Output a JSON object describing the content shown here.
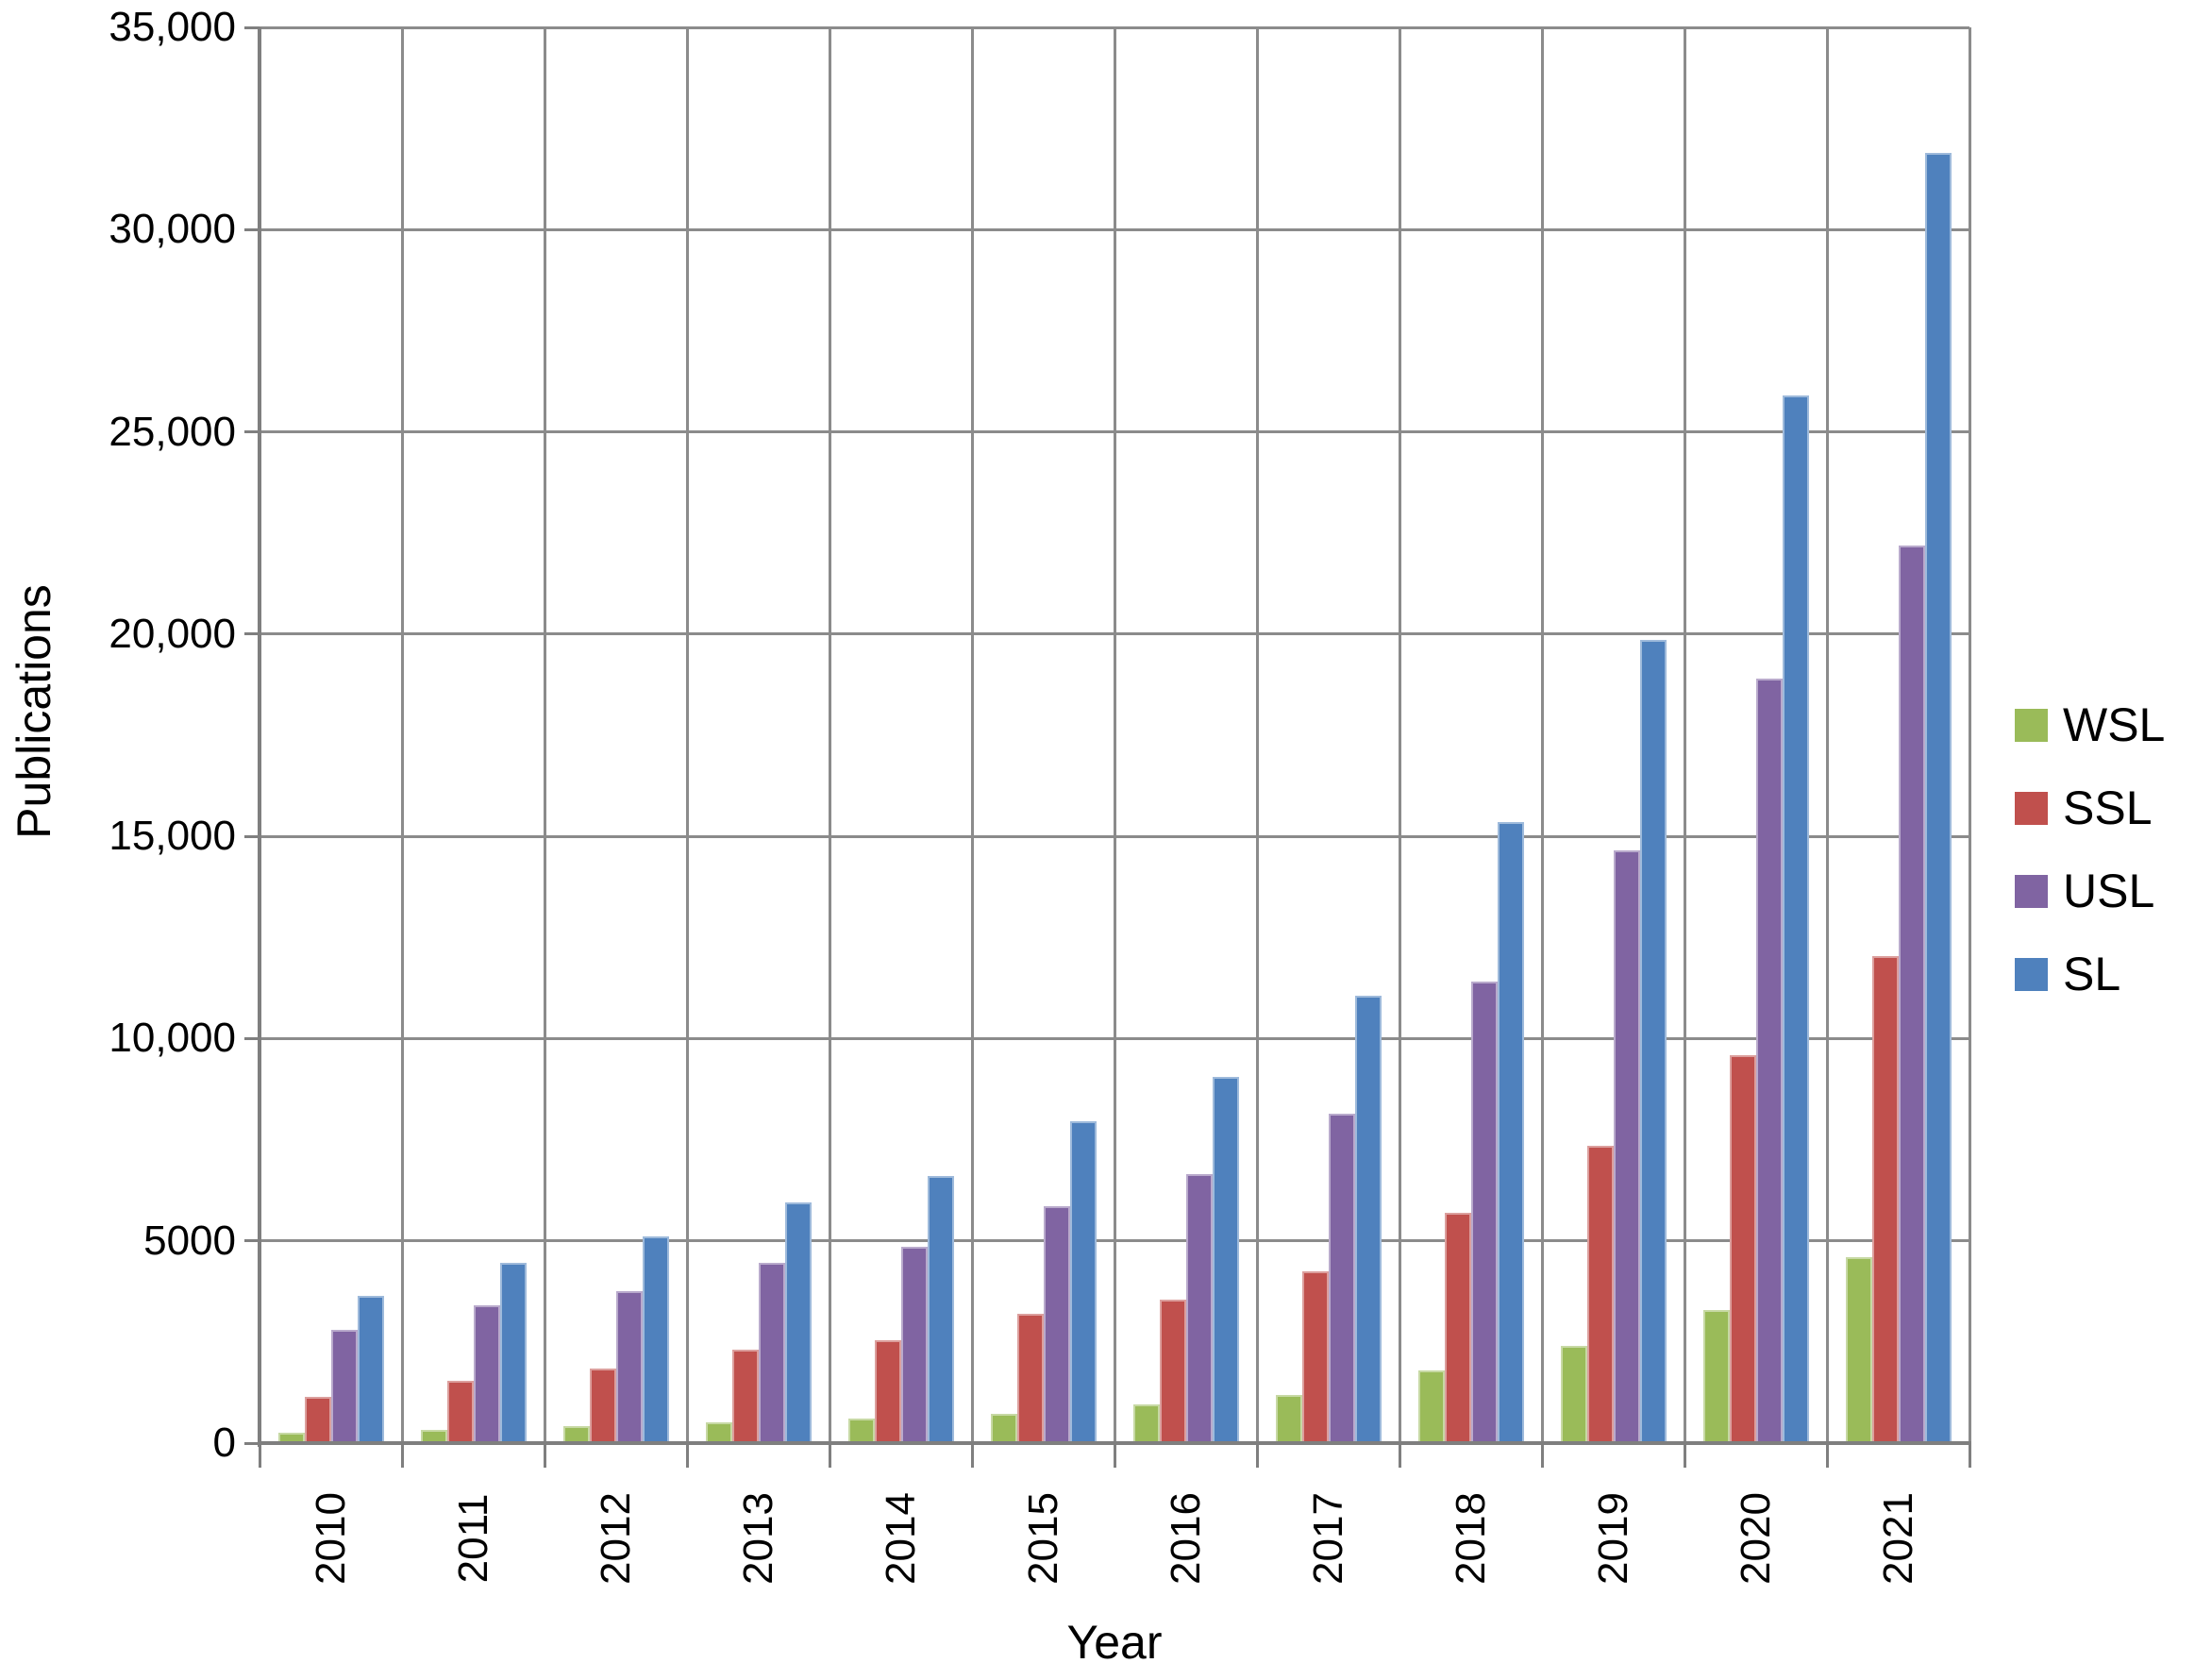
{
  "chart_data": {
    "type": "bar",
    "title": "",
    "xlabel": "Year",
    "ylabel": "Publications",
    "categories": [
      "2010",
      "2011",
      "2012",
      "2013",
      "2014",
      "2015",
      "2016",
      "2017",
      "2018",
      "2019",
      "2020",
      "2021"
    ],
    "series": [
      {
        "name": "WSL",
        "color": "#9ABB59",
        "values": [
          250,
          330,
          430,
          510,
          600,
          730,
          950,
          1200,
          1800,
          2400,
          3300,
          4600
        ]
      },
      {
        "name": "SSL",
        "color": "#C0504D",
        "values": [
          1150,
          1550,
          1850,
          2300,
          2550,
          3200,
          3550,
          4250,
          5700,
          7350,
          9600,
          12050
        ]
      },
      {
        "name": "USL",
        "color": "#8064A2",
        "values": [
          2800,
          3400,
          3750,
          4450,
          4850,
          5850,
          6650,
          8150,
          11400,
          14650,
          18900,
          22200
        ]
      },
      {
        "name": "SL",
        "color": "#4F81BD",
        "values": [
          3650,
          4450,
          5100,
          5950,
          6600,
          7950,
          9050,
          11050,
          15350,
          19850,
          25900,
          31900
        ]
      }
    ],
    "ylim": [
      0,
      35000
    ],
    "y_ticks": [
      {
        "value": 0,
        "label": "0"
      },
      {
        "value": 5000,
        "label": "5000"
      },
      {
        "value": 10000,
        "label": "10,000"
      },
      {
        "value": 15000,
        "label": "15,000"
      },
      {
        "value": 20000,
        "label": "20,000"
      },
      {
        "value": 25000,
        "label": "25,000"
      },
      {
        "value": 30000,
        "label": "30,000"
      },
      {
        "value": 35000,
        "label": "35,000"
      }
    ],
    "grid": true,
    "legend_position": "right"
  },
  "colors": {
    "background": "#FFFFFF",
    "gridline": "#8B8B8B",
    "axis_line": "#7F7F7F",
    "text": "#000000"
  }
}
